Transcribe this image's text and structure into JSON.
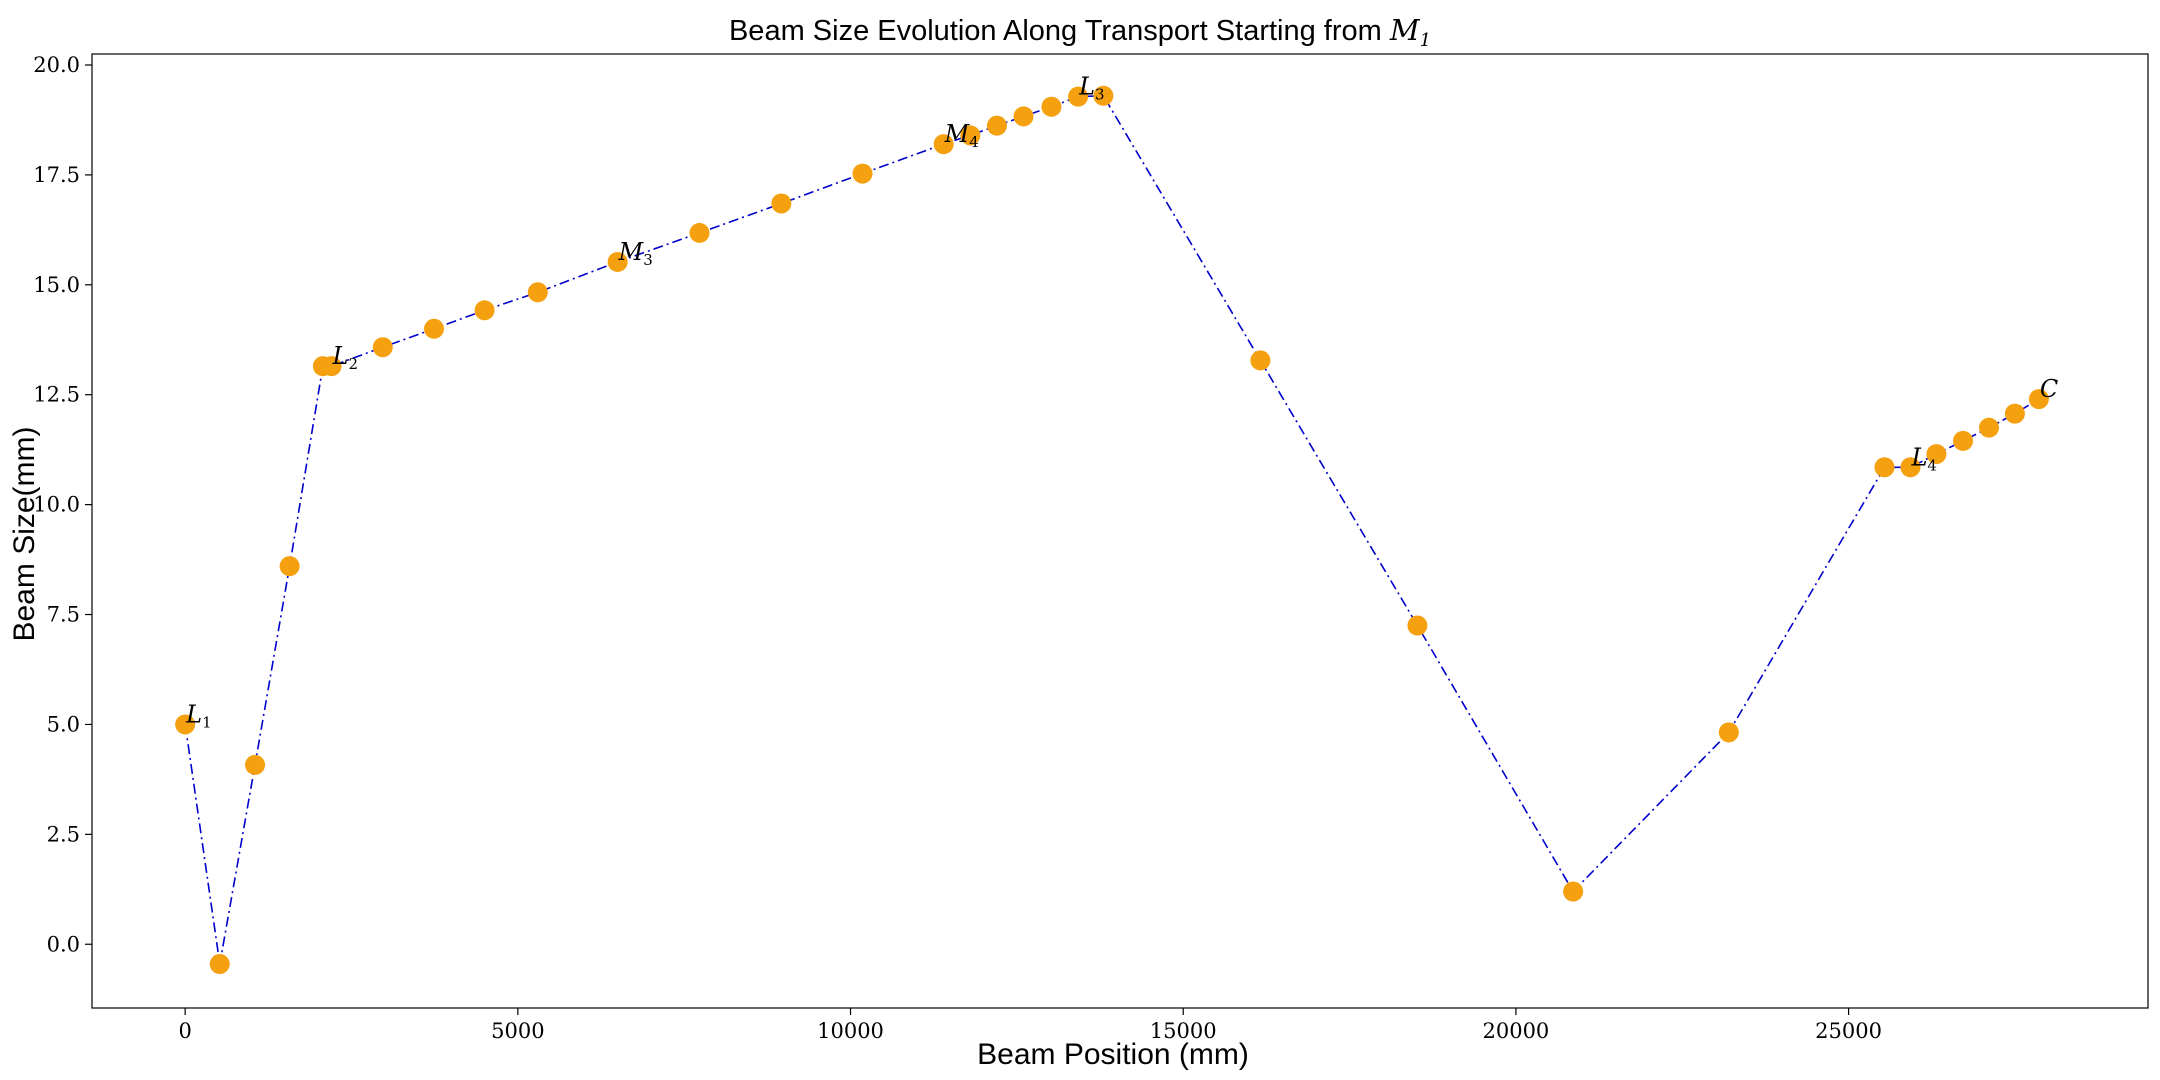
{
  "chart_data": {
    "type": "line",
    "title": "Beam Size Evolution Along Transport Starting from",
    "title_math": {
      "base": "M",
      "sub": "1"
    },
    "xlabel": "Beam Position (mm)",
    "ylabel": "Beam Size(mm)",
    "xlim": [
      -1400,
      29500
    ],
    "ylim": [
      -1.45,
      20.25
    ],
    "xticks": [
      0,
      5000,
      10000,
      15000,
      20000,
      25000
    ],
    "xtick_labels": [
      "0",
      "5000",
      "10000",
      "15000",
      "20000",
      "25000"
    ],
    "yticks": [
      0.0,
      2.5,
      5.0,
      7.5,
      10.0,
      12.5,
      15.0,
      17.5,
      20.0
    ],
    "ytick_labels": [
      "0.0",
      "2.5",
      "5.0",
      "7.5",
      "10.0",
      "12.5",
      "15.0",
      "17.5",
      "20.0"
    ],
    "grid": false,
    "line_color": "#0000cc",
    "line_style": "dash-dot",
    "marker_color": "#f5a00f",
    "series": [
      {
        "x": [
          0,
          520,
          1050,
          1570,
          2070,
          2200,
          2970,
          3740,
          4500,
          5300,
          6500,
          7730,
          8960,
          10180,
          11400,
          11800,
          12200,
          12600,
          13020,
          13420,
          13800,
          16160,
          18520,
          20860,
          23200,
          25540,
          25930,
          26320,
          26720,
          27110,
          27500,
          27860
        ],
        "y": [
          5.0,
          -0.45,
          4.08,
          8.6,
          13.15,
          13.15,
          13.58,
          14.0,
          14.42,
          14.83,
          15.52,
          16.18,
          16.85,
          17.53,
          18.2,
          18.4,
          18.62,
          18.83,
          19.05,
          19.28,
          19.3,
          13.28,
          7.25,
          1.2,
          4.82,
          10.85,
          10.85,
          11.15,
          11.45,
          11.75,
          12.07,
          12.4
        ]
      }
    ],
    "annotations": [
      {
        "base": "L",
        "sub": "1",
        "x": 0,
        "y": 5.0
      },
      {
        "base": "L",
        "sub": "2",
        "x": 2200,
        "y": 13.15
      },
      {
        "base": "M",
        "sub": "3",
        "x": 6500,
        "y": 15.52
      },
      {
        "base": "M",
        "sub": "4",
        "x": 11400,
        "y": 18.2
      },
      {
        "base": "L",
        "sub": "3",
        "x": 13420,
        "y": 19.28
      },
      {
        "base": "L",
        "sub": "4",
        "x": 25930,
        "y": 10.85
      },
      {
        "base": "C",
        "sub": "",
        "x": 27860,
        "y": 12.4
      }
    ]
  }
}
